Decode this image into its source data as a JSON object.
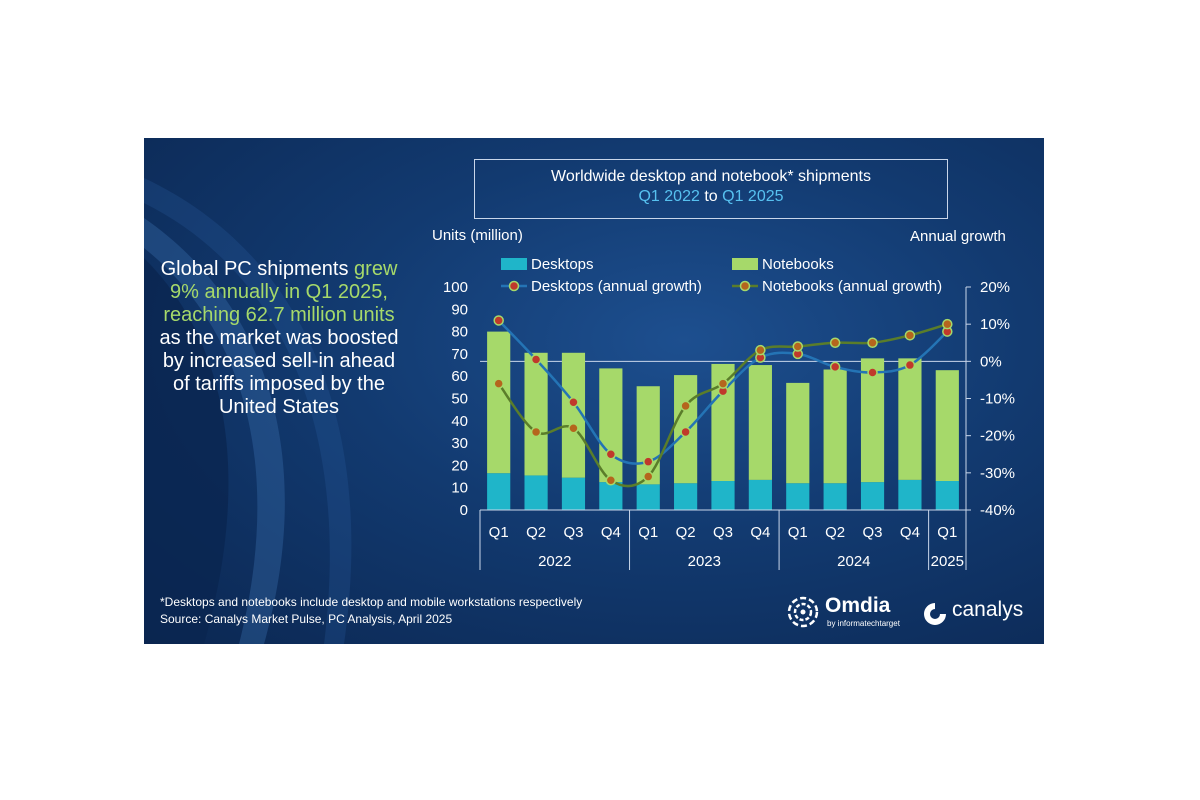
{
  "headline": {
    "part1": "Global PC shipments",
    "part2": "grew 9% annually in Q1 2025, reaching 62.7 million units",
    "part3": "as the market was boosted by increased sell-in ahead of tariffs imposed by the United States"
  },
  "footnote": {
    "line1": "*Desktops and notebooks include desktop and mobile workstations respectively",
    "line2": "Source: Canalys Market Pulse, PC Analysis, April 2025"
  },
  "logos": {
    "omdia_name": "Omdia",
    "omdia_sub": "by informatechtarget",
    "canalys_name": "canalys"
  },
  "colors": {
    "desktops": "#1fb5c9",
    "notebooks": "#a6d96a",
    "desktops_line": "#2474b5",
    "notebooks_line": "#5a7d2a",
    "desktops_marker": "#c0392b",
    "notebooks_marker": "#b5651d",
    "highlight": "#57c1f0"
  },
  "chart_data": {
    "type": "bar",
    "title_line1": "Worldwide desktop and notebook* shipments",
    "title_line2": {
      "from": "Q1 2022",
      "to_word": "to",
      "to": "Q1 2025"
    },
    "ylabel_left": "Units (million)",
    "ylabel_right": "Annual growth",
    "categories": [
      "Q1",
      "Q2",
      "Q3",
      "Q4",
      "Q1",
      "Q2",
      "Q3",
      "Q4",
      "Q1",
      "Q2",
      "Q3",
      "Q4",
      "Q1"
    ],
    "year_groups": [
      {
        "label": "2022",
        "count": 4
      },
      {
        "label": "2023",
        "count": 4
      },
      {
        "label": "2024",
        "count": 4
      },
      {
        "label": "2025",
        "count": 1
      }
    ],
    "ylim_left": [
      0,
      100
    ],
    "yticks_left": [
      "0",
      "10",
      "20",
      "30",
      "40",
      "50",
      "60",
      "70",
      "80",
      "90",
      "100"
    ],
    "ylim_right": [
      -40,
      20
    ],
    "yticks_right": [
      "-40%",
      "-30%",
      "-20%",
      "-10%",
      "0%",
      "10%",
      "20%"
    ],
    "stacked_series": [
      {
        "name": "Desktops",
        "values": [
          16.5,
          15.5,
          14.5,
          12.5,
          11.5,
          12,
          13,
          13.5,
          12,
          12,
          12.5,
          13.5,
          13
        ]
      },
      {
        "name": "Notebooks",
        "values": [
          63.5,
          55,
          56,
          51,
          44,
          48.5,
          52.5,
          51.5,
          45,
          51,
          55.5,
          54.5,
          49.7
        ]
      }
    ],
    "line_series": [
      {
        "name": "Desktops (annual growth)",
        "values": [
          11,
          0.5,
          -11,
          -25,
          -27,
          -19,
          -8,
          1,
          2,
          -1.5,
          -3,
          -1,
          8
        ]
      },
      {
        "name": "Notebooks (annual growth)",
        "values": [
          -6,
          -19,
          -18,
          -32,
          -31,
          -12,
          -6,
          3,
          4,
          5,
          5,
          7,
          10
        ]
      }
    ],
    "legend_position": "top"
  }
}
